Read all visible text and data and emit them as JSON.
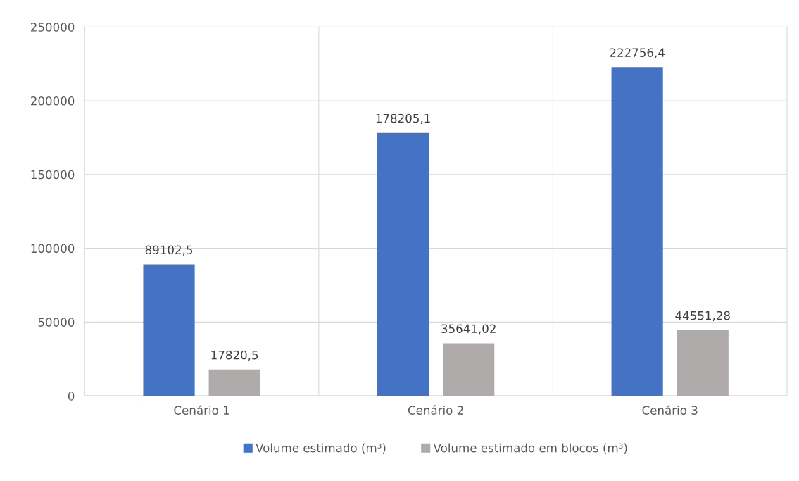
{
  "chart_data": {
    "type": "bar",
    "categories": [
      "Cenário 1",
      "Cenário 2",
      "Cenário 3"
    ],
    "series": [
      {
        "name": "Volume estimado (m³)",
        "color": "#4472c4",
        "values": [
          89102.5,
          178205.1,
          222756.4
        ],
        "value_labels": [
          "89102,5",
          "178205,1",
          "222756,4"
        ]
      },
      {
        "name": "Volume estimado em blocos (m³)",
        "color": "#afabab",
        "values": [
          17820.5,
          35641.02,
          44551.28
        ],
        "value_labels": [
          "17820,5",
          "35641,02",
          "44551,28"
        ]
      }
    ],
    "ylim": [
      0,
      250000
    ],
    "yticks": [
      0,
      50000,
      100000,
      150000,
      200000,
      250000
    ],
    "grid": true,
    "legend": "bottom"
  }
}
